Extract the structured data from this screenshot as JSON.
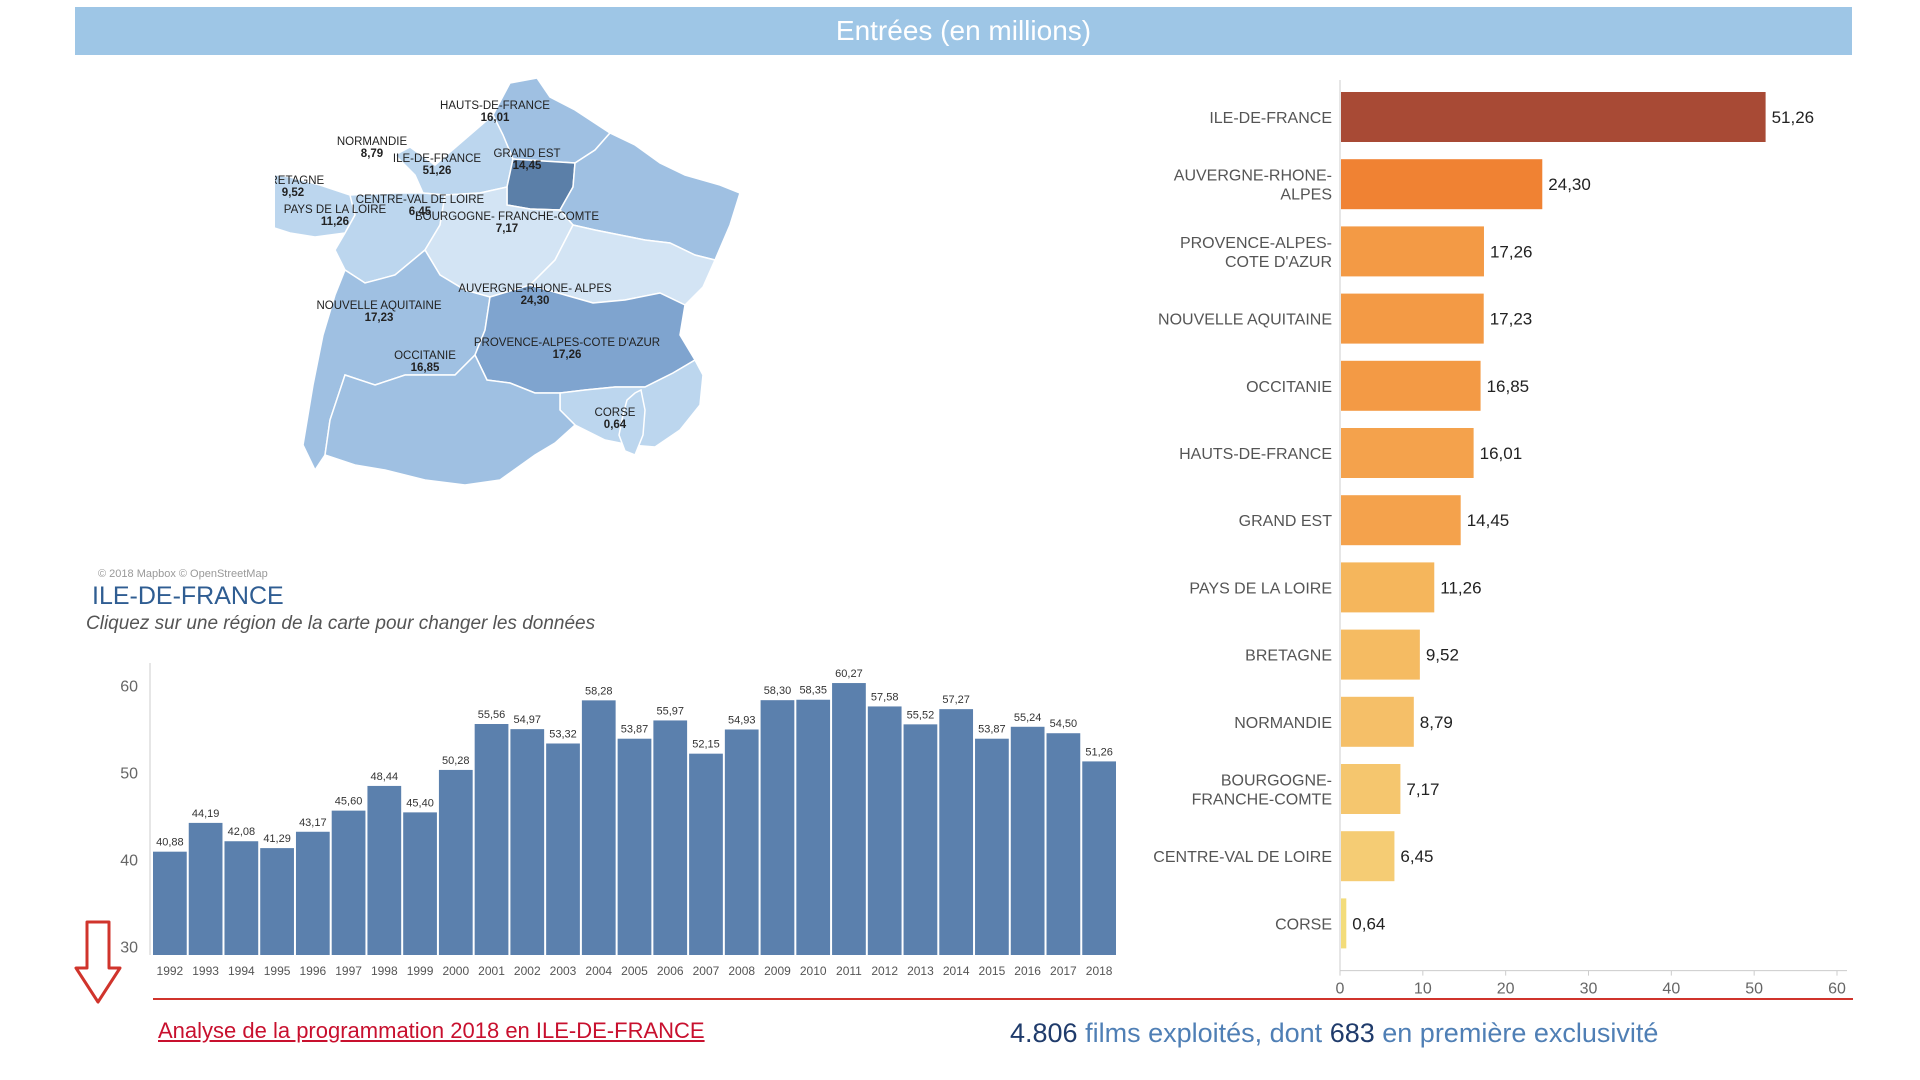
{
  "header": {
    "title": "Entrées (en millions)",
    "color": "#9ec6e6"
  },
  "map": {
    "regions": [
      {
        "name": "HAUTS-DE-FRANCE",
        "value": "16,01"
      },
      {
        "name": "NORMANDIE",
        "value": "8,79"
      },
      {
        "name": "ILE-DE-FRANCE",
        "value": "51,26"
      },
      {
        "name": "GRAND EST",
        "value": "14,45"
      },
      {
        "name": "BRETAGNE",
        "value": "9,52"
      },
      {
        "name": "PAYS DE LA LOIRE",
        "value": "11,26"
      },
      {
        "name": "CENTRE-VAL DE LOIRE",
        "value": "6,45"
      },
      {
        "name": "BOURGOGNE- FRANCHE-COMTE",
        "value": "7,17"
      },
      {
        "name": "NOUVELLE AQUITAINE",
        "value": "17,23"
      },
      {
        "name": "AUVERGNE-RHONE- ALPES",
        "value": "24,30"
      },
      {
        "name": "PROVENCE-ALPES-COTE D'AZUR",
        "value": "17,26"
      },
      {
        "name": "OCCITANIE",
        "value": "16,85"
      },
      {
        "name": "CORSE",
        "value": "0,64"
      }
    ],
    "copyright": "© 2018 Mapbox © OpenStreetMap",
    "colors": {
      "low": "#bcd6ee",
      "mid": "#9fc0e2",
      "high": "#7fa4cf",
      "selected": "#5b7fa8"
    }
  },
  "selected_region": "ILE-DE-FRANCE",
  "instruction": "Cliquez sur une région de la carte pour changer les données",
  "chart_data": [
    {
      "type": "bar",
      "title": "",
      "categories": [
        "1992",
        "1993",
        "1994",
        "1995",
        "1996",
        "1997",
        "1998",
        "1999",
        "2000",
        "2001",
        "2002",
        "2003",
        "2004",
        "2005",
        "2006",
        "2007",
        "2008",
        "2009",
        "2010",
        "2011",
        "2012",
        "2013",
        "2014",
        "2015",
        "2016",
        "2017",
        "2018"
      ],
      "values": [
        40.88,
        44.19,
        42.08,
        41.29,
        43.17,
        45.6,
        48.44,
        45.4,
        50.28,
        55.56,
        54.97,
        53.32,
        58.28,
        53.87,
        55.97,
        52.15,
        54.93,
        58.3,
        58.35,
        60.27,
        57.58,
        55.52,
        57.27,
        53.87,
        55.24,
        54.5,
        51.26
      ],
      "value_labels": [
        "40,88",
        "44,19",
        "42,08",
        "41,29",
        "43,17",
        "45,60",
        "48,44",
        "45,40",
        "50,28",
        "55,56",
        "54,97",
        "53,32",
        "58,28",
        "53,87",
        "55,97",
        "52,15",
        "54,93",
        "58,30",
        "58,35",
        "60,27",
        "57,58",
        "55,52",
        "57,27",
        "53,87",
        "55,24",
        "54,50",
        "51,26"
      ],
      "yticks": [
        "30",
        "40",
        "50",
        "60"
      ],
      "ylim": [
        29,
        62
      ],
      "color": "#5b80ad"
    },
    {
      "type": "bar",
      "orientation": "horizontal",
      "title": "",
      "categories": [
        [
          "ILE-DE-FRANCE"
        ],
        [
          "AUVERGNE-RHONE-",
          "ALPES"
        ],
        [
          "PROVENCE-ALPES-",
          "COTE D'AZUR"
        ],
        [
          "NOUVELLE AQUITAINE"
        ],
        [
          "OCCITANIE"
        ],
        [
          "HAUTS-DE-FRANCE"
        ],
        [
          "GRAND EST"
        ],
        [
          "PAYS DE LA LOIRE"
        ],
        [
          "BRETAGNE"
        ],
        [
          "NORMANDIE"
        ],
        [
          "BOURGOGNE-",
          "FRANCHE-COMTE"
        ],
        [
          "CENTRE-VAL DE LOIRE"
        ],
        [
          "CORSE"
        ]
      ],
      "values": [
        51.26,
        24.3,
        17.26,
        17.23,
        16.85,
        16.01,
        14.45,
        11.26,
        9.52,
        8.79,
        7.17,
        6.45,
        0.64
      ],
      "value_labels": [
        "51,26",
        "24,30",
        "17,26",
        "17,23",
        "16,85",
        "16,01",
        "14,45",
        "11,26",
        "9,52",
        "8,79",
        "7,17",
        "6,45",
        "0,64"
      ],
      "colors": [
        "#a84a35",
        "#f08233",
        "#f39a45",
        "#f39a45",
        "#f39a45",
        "#f4a24c",
        "#f4a24c",
        "#f5b65c",
        "#f5bb62",
        "#f5bf68",
        "#f5c66e",
        "#f5cc74",
        "#f3dc7a"
      ],
      "xticks": [
        "0",
        "10",
        "20",
        "30",
        "40",
        "50",
        "60"
      ],
      "xlim": [
        0,
        60
      ]
    }
  ],
  "footer": {
    "link_text": "Analyse de la programmation 2018 en ILE-DE-FRANCE",
    "films_count": "4.806",
    "films_text_1": " films exploités, dont ",
    "exclusive_count": "683",
    "films_text_2": " en première exclusivité",
    "link_color": "#c8102e",
    "arrow_color": "#d0342c"
  }
}
